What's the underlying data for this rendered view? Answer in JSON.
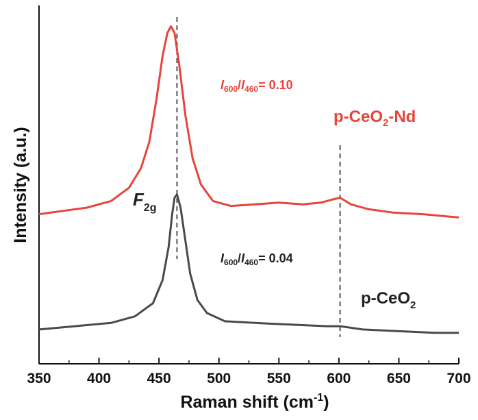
{
  "chart_data": {
    "type": "line",
    "xlabel_main": "Raman shift (cm",
    "xlabel_sup": "-1",
    "xlabel_tail": ")",
    "ylabel": "Intensity (a.u.)",
    "xlim": [
      350,
      700
    ],
    "x_ticks": [
      350,
      400,
      450,
      500,
      550,
      600,
      650,
      700
    ],
    "y_ticks_shown": false,
    "reference_lines_x": [
      465,
      601
    ],
    "series": [
      {
        "name": "p-CeO2-Nd",
        "color": "#e8443a",
        "points": [
          [
            350,
            0.4
          ],
          [
            370,
            0.41
          ],
          [
            390,
            0.42
          ],
          [
            410,
            0.44
          ],
          [
            425,
            0.48
          ],
          [
            435,
            0.54
          ],
          [
            442,
            0.62
          ],
          [
            448,
            0.75
          ],
          [
            453,
            0.88
          ],
          [
            457,
            0.95
          ],
          [
            460,
            0.97
          ],
          [
            463,
            0.95
          ],
          [
            467,
            0.85
          ],
          [
            472,
            0.7
          ],
          [
            478,
            0.57
          ],
          [
            485,
            0.49
          ],
          [
            495,
            0.44
          ],
          [
            510,
            0.425
          ],
          [
            530,
            0.43
          ],
          [
            550,
            0.435
          ],
          [
            570,
            0.43
          ],
          [
            585,
            0.435
          ],
          [
            595,
            0.445
          ],
          [
            601,
            0.45
          ],
          [
            610,
            0.43
          ],
          [
            625,
            0.415
          ],
          [
            645,
            0.405
          ],
          [
            670,
            0.4
          ],
          [
            700,
            0.39
          ]
        ]
      },
      {
        "name": "p-CeO2",
        "color": "#4a4a4a",
        "points": [
          [
            350,
            0.05
          ],
          [
            380,
            0.06
          ],
          [
            410,
            0.07
          ],
          [
            430,
            0.09
          ],
          [
            445,
            0.13
          ],
          [
            453,
            0.2
          ],
          [
            458,
            0.3
          ],
          [
            461,
            0.4
          ],
          [
            463,
            0.45
          ],
          [
            465,
            0.46
          ],
          [
            468,
            0.42
          ],
          [
            472,
            0.32
          ],
          [
            476,
            0.22
          ],
          [
            482,
            0.14
          ],
          [
            490,
            0.1
          ],
          [
            505,
            0.075
          ],
          [
            530,
            0.07
          ],
          [
            560,
            0.065
          ],
          [
            590,
            0.06
          ],
          [
            601,
            0.06
          ],
          [
            620,
            0.05
          ],
          [
            650,
            0.045
          ],
          [
            680,
            0.04
          ],
          [
            700,
            0.04
          ]
        ]
      }
    ],
    "annotations": {
      "red_ratio_i1": "I",
      "red_ratio_s1": "600",
      "red_ratio_slash": "/",
      "red_ratio_i2": "I",
      "red_ratio_s2": "460",
      "red_ratio_value": "= 0.10",
      "dark_ratio_i1": "I",
      "dark_ratio_s1": "600",
      "dark_ratio_slash": "/",
      "dark_ratio_i2": "I",
      "dark_ratio_s2": "460",
      "dark_ratio_value": "= 0.04",
      "label_nd_a": "p-CeO",
      "label_nd_sub": "2",
      "label_nd_b": "-Nd",
      "label_ceo2_a": "p-CeO",
      "label_ceo2_sub": "2",
      "f2g_main": "F",
      "f2g_sub": "2g"
    }
  }
}
